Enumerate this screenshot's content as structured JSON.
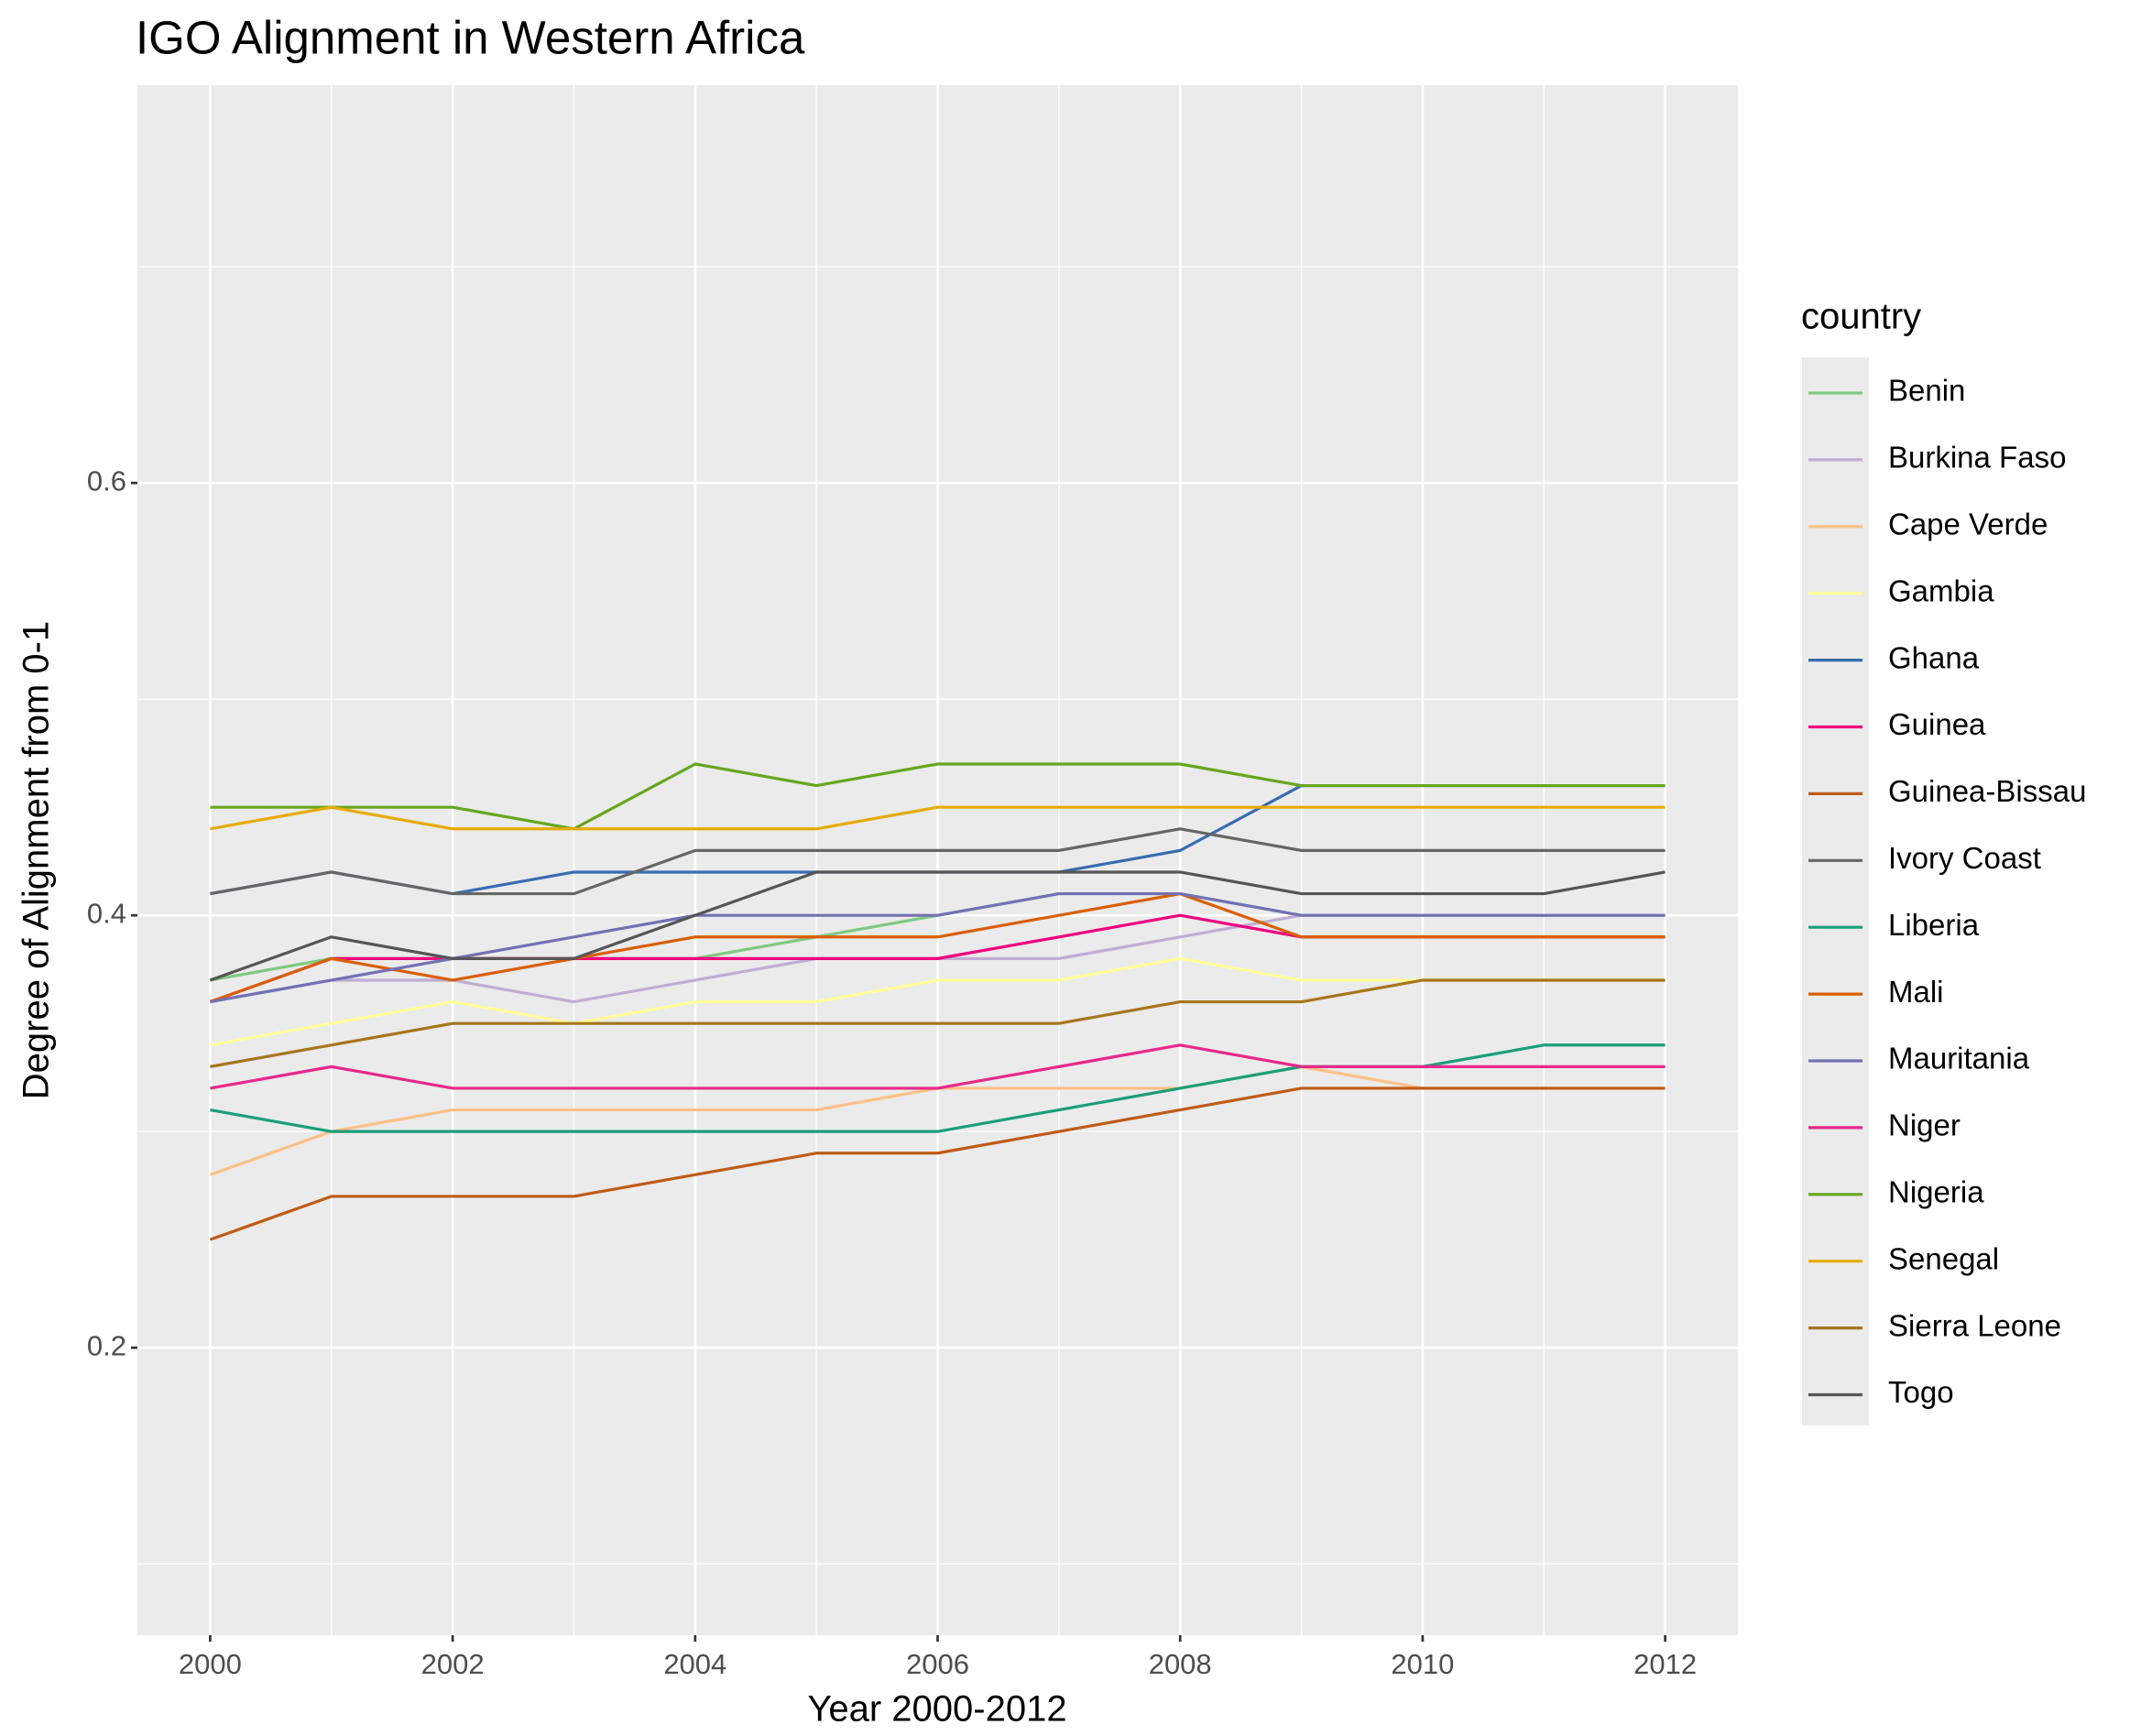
{
  "chart_data": {
    "type": "line",
    "title": "IGO Alignment in Western Africa",
    "x_label": "Year 2000-2012",
    "y_label": "Degree of Alignment from 0-1",
    "legend_title": "country",
    "x": [
      2000,
      2001,
      2002,
      2003,
      2004,
      2005,
      2006,
      2007,
      2008,
      2009,
      2010,
      2011,
      2012
    ],
    "xlim": [
      1999.4,
      2012.6
    ],
    "xticks": [
      2000,
      2002,
      2004,
      2006,
      2008,
      2010,
      2012
    ],
    "xminor": [
      2001,
      2003,
      2005,
      2007,
      2009,
      2011
    ],
    "ylim": [
      0.067,
      0.784
    ],
    "yticks": [
      0.2,
      0.4,
      0.6
    ],
    "yminor": [
      0.1,
      0.3,
      0.5,
      0.7
    ],
    "grid": true,
    "legend": "right",
    "series": [
      {
        "name": "Benin",
        "color": "#7fc97f",
        "values": [
          0.37,
          0.38,
          0.38,
          0.38,
          0.38,
          0.39,
          0.4,
          0.41,
          0.41,
          0.4,
          0.4,
          0.4,
          0.4
        ]
      },
      {
        "name": "Burkina Faso",
        "color": "#beaed4",
        "values": [
          0.36,
          0.37,
          0.37,
          0.36,
          0.37,
          0.38,
          0.38,
          0.38,
          0.39,
          0.4,
          0.4,
          0.4,
          0.4
        ]
      },
      {
        "name": "Cape Verde",
        "color": "#fdc086",
        "values": [
          0.28,
          0.3,
          0.31,
          0.31,
          0.31,
          0.31,
          0.32,
          0.32,
          0.32,
          0.33,
          0.32,
          0.32,
          0.32
        ]
      },
      {
        "name": "Gambia",
        "color": "#ffff99",
        "values": [
          0.34,
          0.35,
          0.36,
          0.35,
          0.36,
          0.36,
          0.37,
          0.37,
          0.38,
          0.37,
          0.37,
          0.37,
          0.37
        ]
      },
      {
        "name": "Ghana",
        "color": "#386cb0",
        "values": [
          0.41,
          0.42,
          0.41,
          0.42,
          0.42,
          0.42,
          0.42,
          0.42,
          0.43,
          0.46,
          0.46,
          0.46,
          0.46
        ]
      },
      {
        "name": "Guinea",
        "color": "#f0027f",
        "values": [
          0.36,
          0.38,
          0.38,
          0.38,
          0.38,
          0.38,
          0.38,
          0.39,
          0.4,
          0.39,
          0.39,
          0.39,
          0.39
        ]
      },
      {
        "name": "Guinea-Bissau",
        "color": "#bf5b17",
        "values": [
          0.25,
          0.27,
          0.27,
          0.27,
          0.28,
          0.29,
          0.29,
          0.3,
          0.31,
          0.32,
          0.32,
          0.32,
          0.32
        ]
      },
      {
        "name": "Ivory Coast",
        "color": "#666666",
        "values": [
          0.41,
          0.42,
          0.41,
          0.41,
          0.43,
          0.43,
          0.43,
          0.43,
          0.44,
          0.43,
          0.43,
          0.43,
          0.43
        ]
      },
      {
        "name": "Liberia",
        "color": "#1b9e77",
        "values": [
          0.31,
          0.3,
          0.3,
          0.3,
          0.3,
          0.3,
          0.3,
          0.31,
          0.32,
          0.33,
          0.33,
          0.34,
          0.34
        ]
      },
      {
        "name": "Mali",
        "color": "#d95f02",
        "values": [
          0.36,
          0.38,
          0.37,
          0.38,
          0.39,
          0.39,
          0.39,
          0.4,
          0.41,
          0.39,
          0.39,
          0.39,
          0.39
        ]
      },
      {
        "name": "Mauritania",
        "color": "#7570b3",
        "values": [
          0.36,
          0.37,
          0.38,
          0.39,
          0.4,
          0.4,
          0.4,
          0.41,
          0.41,
          0.4,
          0.4,
          0.4,
          0.4
        ]
      },
      {
        "name": "Niger",
        "color": "#e7298a",
        "values": [
          0.32,
          0.33,
          0.32,
          0.32,
          0.32,
          0.32,
          0.32,
          0.33,
          0.34,
          0.33,
          0.33,
          0.33,
          0.33
        ]
      },
      {
        "name": "Nigeria",
        "color": "#66a61e",
        "values": [
          0.45,
          0.45,
          0.45,
          0.44,
          0.47,
          0.46,
          0.47,
          0.47,
          0.47,
          0.46,
          0.46,
          0.46,
          0.46
        ]
      },
      {
        "name": "Senegal",
        "color": "#e6ab02",
        "values": [
          0.44,
          0.45,
          0.44,
          0.44,
          0.44,
          0.44,
          0.45,
          0.45,
          0.45,
          0.45,
          0.45,
          0.45,
          0.45
        ]
      },
      {
        "name": "Sierra Leone",
        "color": "#a6761d",
        "values": [
          0.33,
          0.34,
          0.35,
          0.35,
          0.35,
          0.35,
          0.35,
          0.35,
          0.36,
          0.36,
          0.37,
          0.37,
          0.37
        ]
      },
      {
        "name": "Togo",
        "color": "#555555",
        "values": [
          0.37,
          0.39,
          0.38,
          0.38,
          0.4,
          0.42,
          0.42,
          0.42,
          0.42,
          0.41,
          0.41,
          0.41,
          0.42
        ]
      }
    ]
  }
}
